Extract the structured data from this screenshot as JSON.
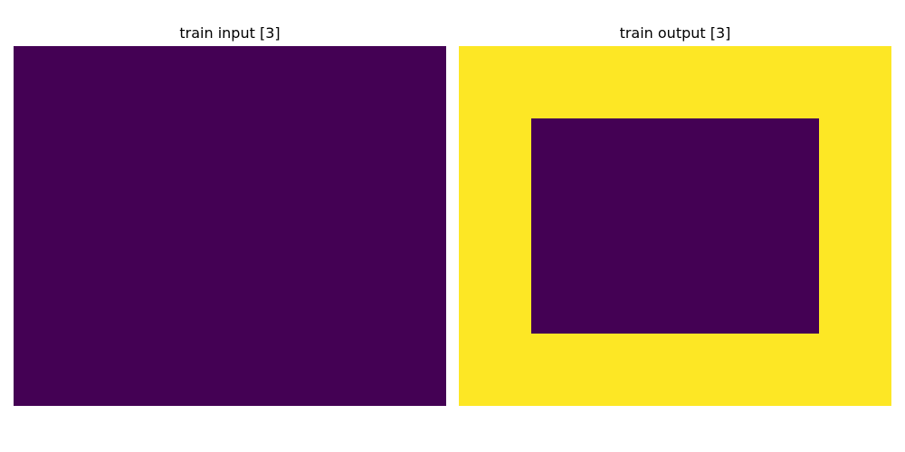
{
  "panels": [
    {
      "title": "train input [3]",
      "grid": [
        [
          0,
          0,
          0,
          0,
          0,
          0
        ],
        [
          0,
          0,
          0,
          0,
          0,
          0
        ],
        [
          0,
          0,
          0,
          0,
          0,
          0
        ],
        [
          0,
          0,
          0,
          0,
          0,
          0
        ],
        [
          0,
          0,
          0,
          0,
          0,
          0
        ]
      ]
    },
    {
      "title": "train output [3]",
      "grid": [
        [
          4,
          4,
          4,
          4,
          4,
          4
        ],
        [
          4,
          0,
          0,
          0,
          0,
          4
        ],
        [
          4,
          0,
          0,
          0,
          0,
          4
        ],
        [
          4,
          0,
          0,
          0,
          0,
          4
        ],
        [
          4,
          4,
          4,
          4,
          4,
          4
        ]
      ]
    }
  ],
  "palette": {
    "0": "#440154",
    "4": "#fde725"
  }
}
